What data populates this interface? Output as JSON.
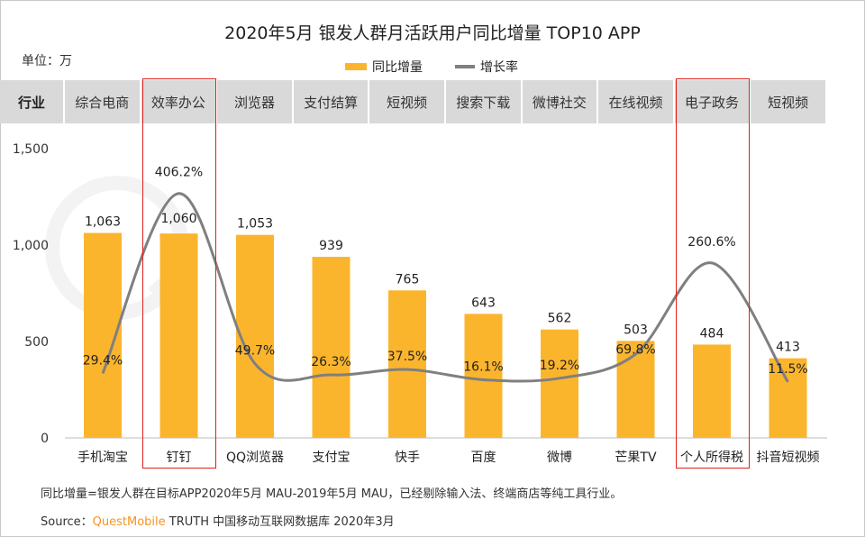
{
  "chart_data": {
    "type": "bar+line",
    "title": "2020年5月 银发人群月活跃用户同比增量 TOP10  APP",
    "unit_label": "单位：万",
    "header_label": "行业",
    "industries": [
      "综合电商",
      "效率办公",
      "浏览器",
      "支付结算",
      "短视频",
      "搜索下载",
      "微博社交",
      "在线视频",
      "电子政务",
      "短视频"
    ],
    "categories": [
      "手机淘宝",
      "钉钉",
      "QQ浏览器",
      "支付宝",
      "快手",
      "百度",
      "微博",
      "芒果TV",
      "个人所得税",
      "抖音短视频"
    ],
    "series": [
      {
        "name": "同比增量",
        "type": "bar",
        "values": [
          1063,
          1060,
          1053,
          939,
          765,
          643,
          562,
          503,
          484,
          413
        ],
        "labels": [
          "1,063",
          "1,060",
          "1,053",
          "939",
          "765",
          "643",
          "562",
          "503",
          "484",
          "413"
        ],
        "color": "#FBB52D"
      },
      {
        "name": "增长率",
        "type": "line",
        "values": [
          29.4,
          406.2,
          49.7,
          26.3,
          37.5,
          16.1,
          19.2,
          69.8,
          260.6,
          11.5
        ],
        "labels": [
          "29.4%",
          "406.2%",
          "49.7%",
          "26.3%",
          "37.5%",
          "16.1%",
          "19.2%",
          "69.8%",
          "260.6%",
          "11.5%"
        ],
        "color": "#7f7f7f"
      }
    ],
    "yticks": [
      "1,500",
      "1,000",
      "500",
      "0"
    ],
    "ylim": [
      0,
      1500
    ],
    "highlighted": [
      "效率办公",
      "电子政务"
    ],
    "highlight_color": "#e0201a"
  },
  "footnote": "同比增量=银发人群在目标APP2020年5月 MAU-2019年5月 MAU，已经剔除输入法、终端商店等纯工具行业。",
  "source": {
    "prefix": "Source：",
    "brand": "QuestMobile",
    "rest": " TRUTH 中国移动互联网数据库 2020年3月"
  },
  "watermark": "QUESTMOBILE"
}
